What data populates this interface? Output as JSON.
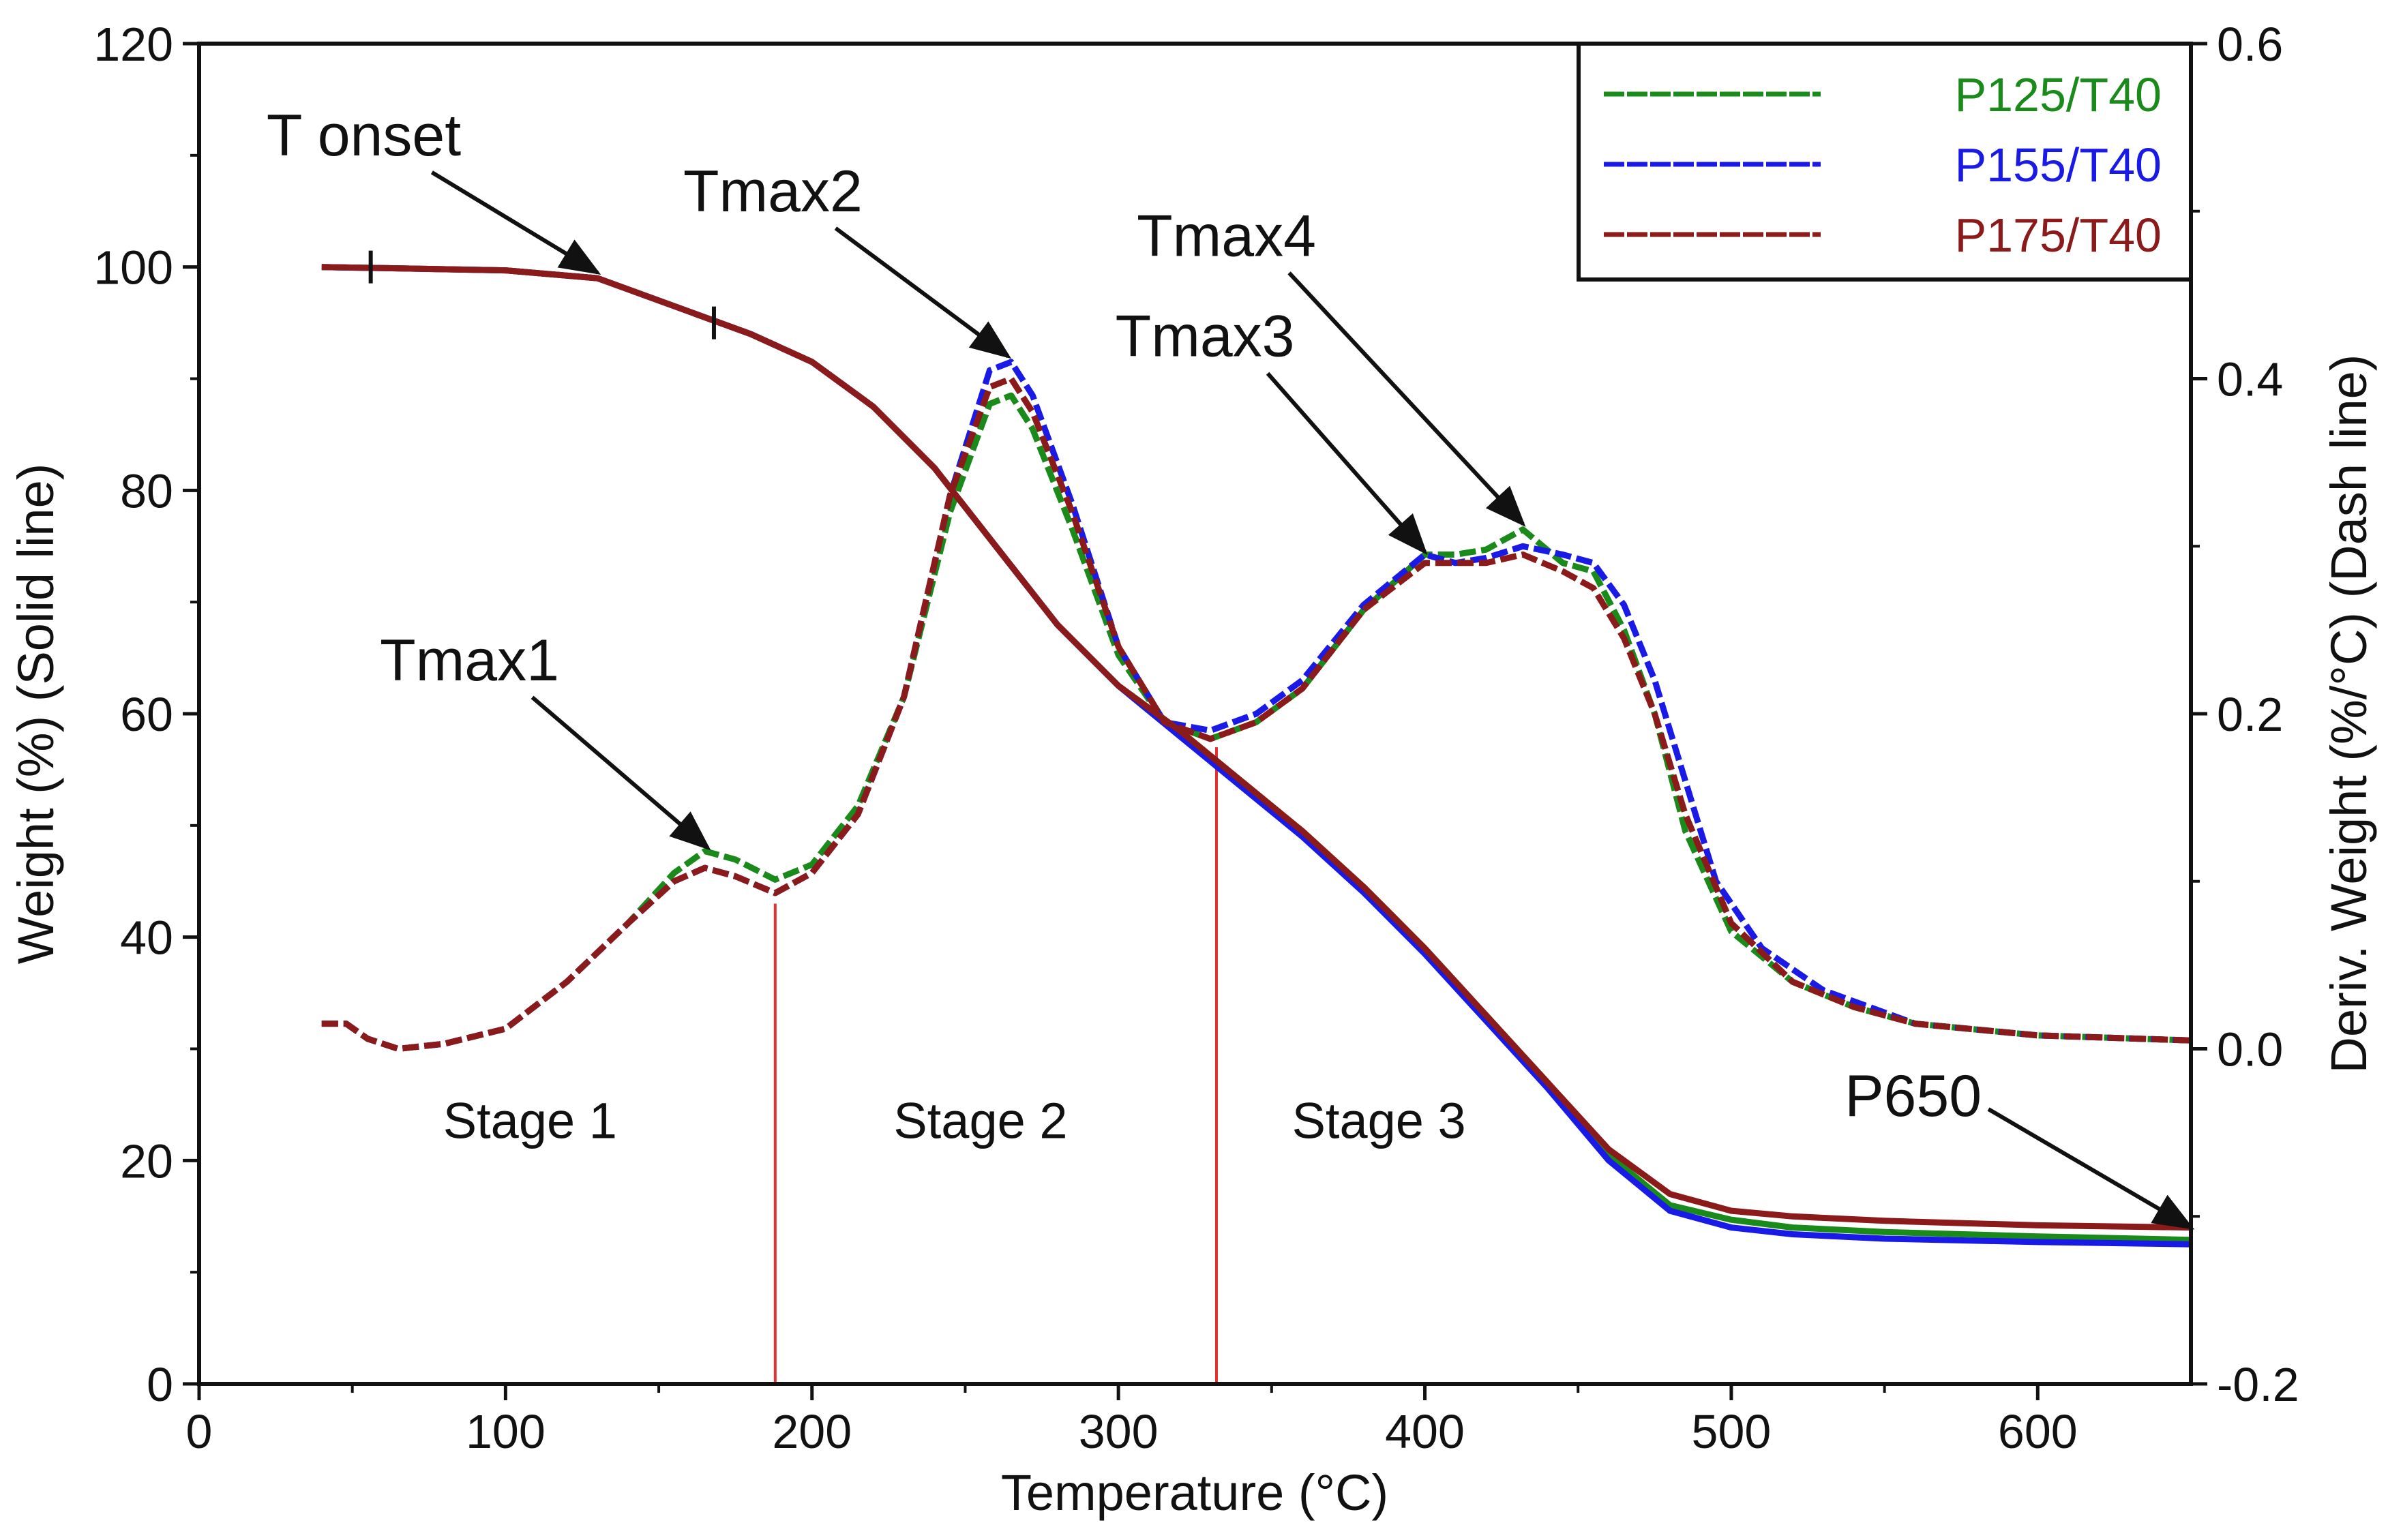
{
  "chart_data": {
    "type": "line",
    "xlabel": "Temperature (°C)",
    "ylabel_left": "Weight (%) (Solid line)",
    "ylabel_right": "Deriv. Weight (%/°C) (Dash line)",
    "xlim": [
      0,
      650
    ],
    "ylim_left": [
      0,
      120
    ],
    "ylim_right": [
      -0.2,
      0.6
    ],
    "x_ticks": [
      0,
      100,
      200,
      300,
      400,
      500,
      600
    ],
    "y_left_ticks": [
      0,
      20,
      40,
      60,
      80,
      100,
      120
    ],
    "y_right_ticks": [
      -0.2,
      0.0,
      0.2,
      0.4,
      0.6
    ],
    "y_right_tick_labels": [
      "-0.2",
      "0.0",
      "0.2",
      "0.4",
      "0.6"
    ],
    "legend": {
      "position": "top-right"
    },
    "series": [
      {
        "name": "P125/T40",
        "color": "#1a8a1a",
        "weight": [
          [
            40,
            100
          ],
          [
            60,
            99.9
          ],
          [
            100,
            99.7
          ],
          [
            130,
            99
          ],
          [
            160,
            96
          ],
          [
            180,
            94
          ],
          [
            200,
            91.5
          ],
          [
            220,
            87.5
          ],
          [
            240,
            82
          ],
          [
            260,
            75
          ],
          [
            280,
            68
          ],
          [
            300,
            62.5
          ],
          [
            320,
            58.5
          ],
          [
            340,
            54
          ],
          [
            360,
            49.5
          ],
          [
            380,
            44.5
          ],
          [
            400,
            39
          ],
          [
            420,
            33
          ],
          [
            440,
            27
          ],
          [
            460,
            20.5
          ],
          [
            480,
            16
          ],
          [
            500,
            14.7
          ],
          [
            520,
            14
          ],
          [
            550,
            13.6
          ],
          [
            600,
            13.2
          ],
          [
            650,
            12.9
          ]
        ],
        "deriv": [
          [
            40,
            0.015
          ],
          [
            48,
            0.015
          ],
          [
            55,
            0.006
          ],
          [
            65,
            0
          ],
          [
            80,
            0.003
          ],
          [
            100,
            0.012
          ],
          [
            120,
            0.04
          ],
          [
            140,
            0.075
          ],
          [
            155,
            0.105
          ],
          [
            165,
            0.118
          ],
          [
            175,
            0.113
          ],
          [
            188,
            0.101
          ],
          [
            200,
            0.11
          ],
          [
            215,
            0.145
          ],
          [
            230,
            0.21
          ],
          [
            245,
            0.32
          ],
          [
            258,
            0.385
          ],
          [
            265,
            0.39
          ],
          [
            272,
            0.37
          ],
          [
            285,
            0.31
          ],
          [
            300,
            0.235
          ],
          [
            315,
            0.195
          ],
          [
            330,
            0.185
          ],
          [
            345,
            0.195
          ],
          [
            360,
            0.215
          ],
          [
            380,
            0.262
          ],
          [
            400,
            0.295
          ],
          [
            410,
            0.295
          ],
          [
            420,
            0.298
          ],
          [
            432,
            0.31
          ],
          [
            445,
            0.29
          ],
          [
            455,
            0.285
          ],
          [
            465,
            0.25
          ],
          [
            475,
            0.2
          ],
          [
            485,
            0.13
          ],
          [
            500,
            0.07
          ],
          [
            520,
            0.04
          ],
          [
            540,
            0.025
          ],
          [
            560,
            0.015
          ],
          [
            600,
            0.008
          ],
          [
            650,
            0.005
          ]
        ]
      },
      {
        "name": "P155/T40",
        "color": "#1a1ae6",
        "weight": [
          [
            40,
            100
          ],
          [
            60,
            99.9
          ],
          [
            100,
            99.7
          ],
          [
            130,
            99
          ],
          [
            160,
            96
          ],
          [
            180,
            94
          ],
          [
            200,
            91.5
          ],
          [
            220,
            87.5
          ],
          [
            240,
            82
          ],
          [
            260,
            75
          ],
          [
            280,
            68
          ],
          [
            300,
            62.5
          ],
          [
            320,
            58
          ],
          [
            340,
            53.5
          ],
          [
            360,
            49
          ],
          [
            380,
            44
          ],
          [
            400,
            38.5
          ],
          [
            420,
            32.5
          ],
          [
            440,
            26.5
          ],
          [
            460,
            20
          ],
          [
            480,
            15.5
          ],
          [
            500,
            14
          ],
          [
            520,
            13.4
          ],
          [
            550,
            13
          ],
          [
            600,
            12.7
          ],
          [
            650,
            12.5
          ]
        ],
        "deriv": [
          [
            40,
            0.015
          ],
          [
            48,
            0.015
          ],
          [
            55,
            0.006
          ],
          [
            65,
            0
          ],
          [
            80,
            0.003
          ],
          [
            100,
            0.012
          ],
          [
            120,
            0.04
          ],
          [
            140,
            0.075
          ],
          [
            155,
            0.1
          ],
          [
            165,
            0.108
          ],
          [
            175,
            0.103
          ],
          [
            188,
            0.093
          ],
          [
            200,
            0.105
          ],
          [
            215,
            0.14
          ],
          [
            230,
            0.21
          ],
          [
            245,
            0.33
          ],
          [
            258,
            0.405
          ],
          [
            265,
            0.41
          ],
          [
            272,
            0.39
          ],
          [
            285,
            0.325
          ],
          [
            300,
            0.24
          ],
          [
            315,
            0.195
          ],
          [
            330,
            0.19
          ],
          [
            345,
            0.2
          ],
          [
            360,
            0.22
          ],
          [
            380,
            0.265
          ],
          [
            400,
            0.295
          ],
          [
            410,
            0.29
          ],
          [
            420,
            0.293
          ],
          [
            432,
            0.3
          ],
          [
            445,
            0.295
          ],
          [
            455,
            0.29
          ],
          [
            465,
            0.265
          ],
          [
            475,
            0.22
          ],
          [
            485,
            0.16
          ],
          [
            495,
            0.1
          ],
          [
            510,
            0.06
          ],
          [
            530,
            0.035
          ],
          [
            560,
            0.015
          ],
          [
            600,
            0.008
          ],
          [
            650,
            0.005
          ]
        ]
      },
      {
        "name": "P175/T40",
        "color": "#8b1a1a",
        "weight": [
          [
            40,
            100
          ],
          [
            60,
            99.9
          ],
          [
            100,
            99.7
          ],
          [
            130,
            99
          ],
          [
            160,
            96
          ],
          [
            180,
            94
          ],
          [
            200,
            91.5
          ],
          [
            220,
            87.5
          ],
          [
            240,
            82
          ],
          [
            260,
            75
          ],
          [
            280,
            68
          ],
          [
            300,
            62.5
          ],
          [
            320,
            58.5
          ],
          [
            340,
            54
          ],
          [
            360,
            49.5
          ],
          [
            380,
            44.5
          ],
          [
            400,
            39
          ],
          [
            420,
            33
          ],
          [
            440,
            27
          ],
          [
            460,
            21
          ],
          [
            480,
            17
          ],
          [
            500,
            15.5
          ],
          [
            520,
            15
          ],
          [
            550,
            14.6
          ],
          [
            600,
            14.2
          ],
          [
            650,
            14
          ]
        ],
        "deriv": [
          [
            40,
            0.015
          ],
          [
            48,
            0.015
          ],
          [
            55,
            0.006
          ],
          [
            65,
            0
          ],
          [
            80,
            0.003
          ],
          [
            100,
            0.012
          ],
          [
            120,
            0.04
          ],
          [
            140,
            0.075
          ],
          [
            155,
            0.1
          ],
          [
            165,
            0.108
          ],
          [
            175,
            0.103
          ],
          [
            188,
            0.093
          ],
          [
            200,
            0.105
          ],
          [
            215,
            0.14
          ],
          [
            230,
            0.21
          ],
          [
            245,
            0.33
          ],
          [
            258,
            0.395
          ],
          [
            265,
            0.4
          ],
          [
            272,
            0.38
          ],
          [
            285,
            0.32
          ],
          [
            300,
            0.24
          ],
          [
            315,
            0.195
          ],
          [
            330,
            0.185
          ],
          [
            345,
            0.195
          ],
          [
            360,
            0.215
          ],
          [
            380,
            0.262
          ],
          [
            400,
            0.29
          ],
          [
            410,
            0.29
          ],
          [
            420,
            0.29
          ],
          [
            432,
            0.295
          ],
          [
            445,
            0.285
          ],
          [
            455,
            0.275
          ],
          [
            465,
            0.245
          ],
          [
            475,
            0.2
          ],
          [
            485,
            0.14
          ],
          [
            500,
            0.075
          ],
          [
            520,
            0.04
          ],
          [
            540,
            0.025
          ],
          [
            560,
            0.015
          ],
          [
            600,
            0.008
          ],
          [
            650,
            0.005
          ]
        ]
      }
    ],
    "stage_dividers": [
      {
        "x": 188,
        "y_left_top": 43
      },
      {
        "x": 332,
        "y_left_top": 57
      }
    ],
    "stages": [
      {
        "label": "Stage 1",
        "x": 108,
        "y_left": 22
      },
      {
        "label": "Stage 2",
        "x": 255,
        "y_left": 22
      },
      {
        "label": "Stage 3",
        "x": 385,
        "y_left": 22
      }
    ],
    "tonset_marks": [
      {
        "x": 56,
        "y_left": 100
      },
      {
        "x": 168,
        "y_left": 95
      }
    ],
    "annotations": [
      {
        "text": "T onset",
        "text_x": 22,
        "text_y": 110,
        "point_x": 130,
        "point_y": 99.5
      },
      {
        "text": "Tmax2",
        "text_x": 158,
        "text_y": 105,
        "point_x": 264,
        "point_y": 92
      },
      {
        "text": "Tmax4",
        "text_x": 306,
        "text_y": 101,
        "point_x": 432,
        "point_y": 77
      },
      {
        "text": "Tmax3",
        "text_x": 299,
        "text_y": 92,
        "point_x": 400,
        "point_y": 74.5
      },
      {
        "text": "Tmax1",
        "text_x": 59,
        "text_y": 63,
        "point_x": 166,
        "point_y": 48
      },
      {
        "text": "P650",
        "text_x": 537,
        "text_y": 24,
        "point_x": 650,
        "point_y": 14
      }
    ]
  }
}
